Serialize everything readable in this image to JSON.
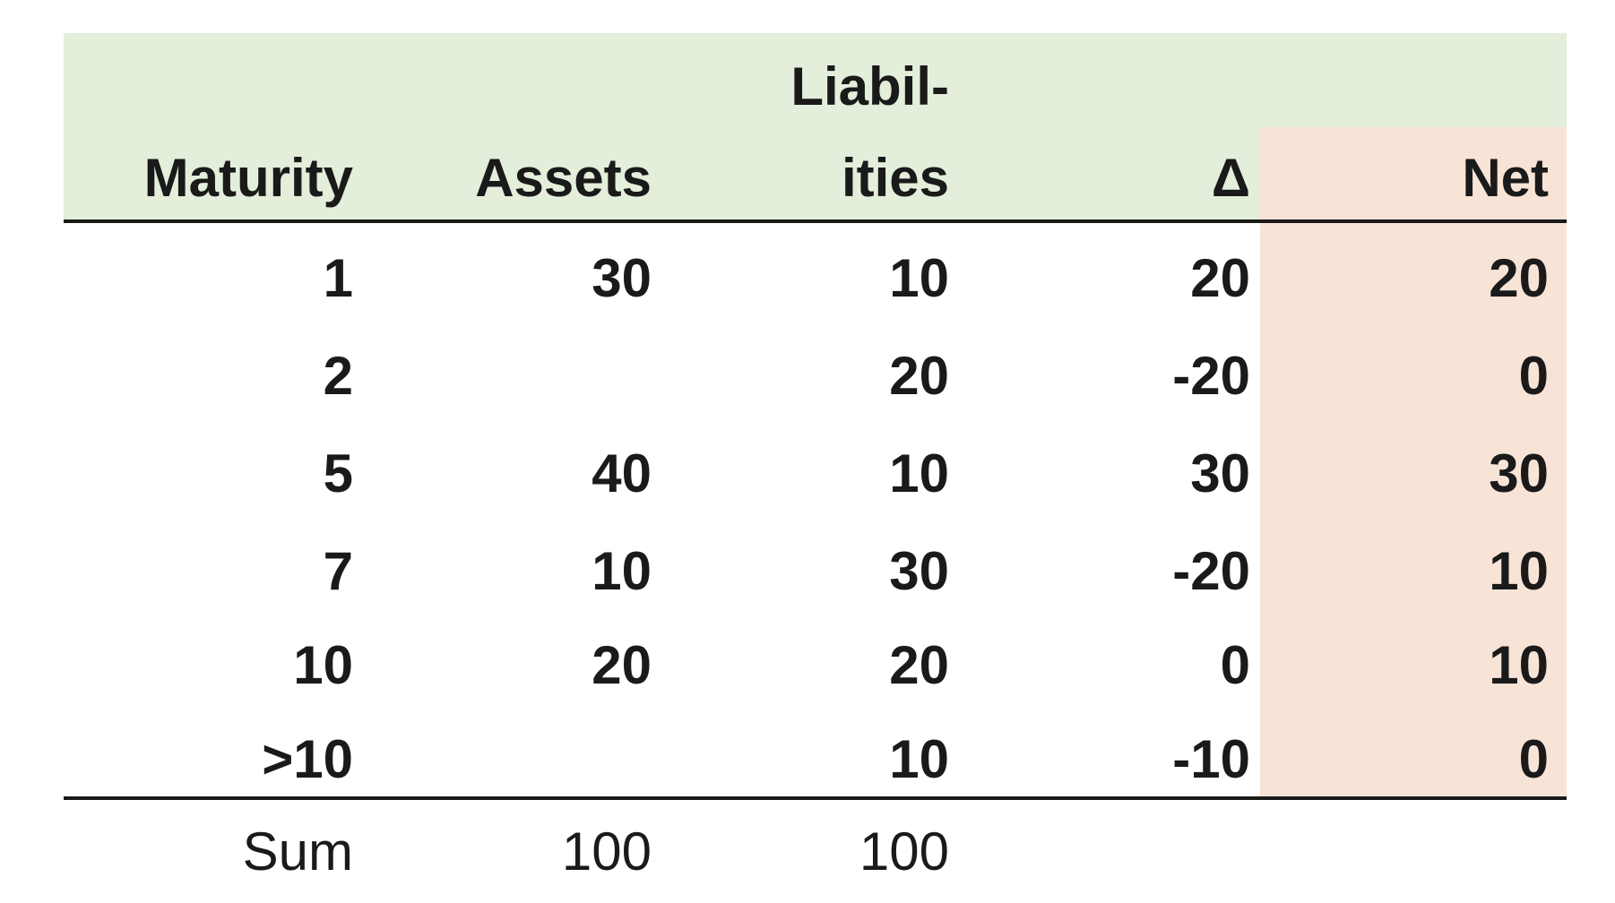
{
  "chart_data": {
    "type": "table",
    "header_line1": [
      "",
      "",
      "Liabil-",
      "",
      ""
    ],
    "header_line2": [
      "Maturity",
      "Assets",
      "ities",
      "Δ",
      "Net"
    ],
    "rows": [
      [
        "1",
        "30",
        "10",
        "20",
        "20"
      ],
      [
        "2",
        "",
        "20",
        "-20",
        "0"
      ],
      [
        "5",
        "40",
        "10",
        "30",
        "30"
      ],
      [
        "7",
        "10",
        "30",
        "-20",
        "10"
      ],
      [
        "10",
        "20",
        "20",
        "0",
        "10"
      ],
      [
        ">10",
        "",
        "10",
        "-10",
        "0"
      ]
    ],
    "footer": [
      "Sum",
      "100",
      "100",
      "",
      ""
    ]
  },
  "colors": {
    "header_background": "#e3eedb",
    "net_column_background": "#f8e4d6",
    "text": "#1a1a1a",
    "rule": "#1a1a1a"
  }
}
